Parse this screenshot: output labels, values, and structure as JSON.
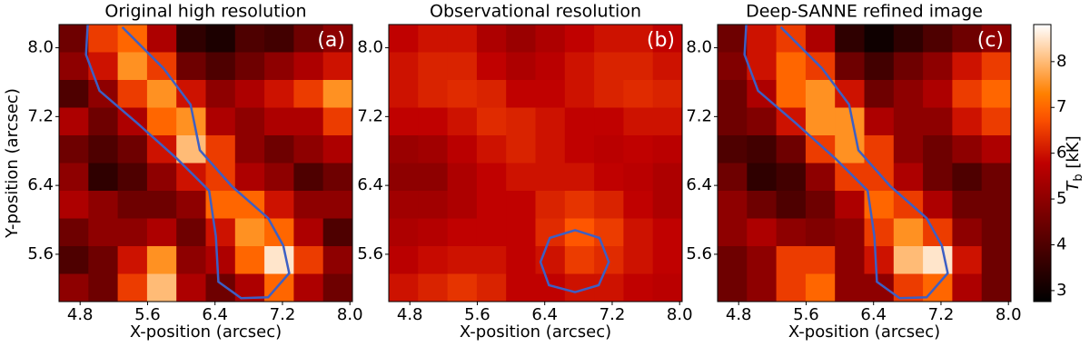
{
  "chart_data": [
    {
      "type": "heatmap",
      "title": "Original high resolution",
      "letter": "(a)",
      "xlabel": "X-position (arcsec)",
      "ylabel": "Y-position (arcsec)",
      "xlim": [
        4.55,
        8.03
      ],
      "ylim": [
        5.05,
        8.27
      ],
      "xticks": [
        4.8,
        5.6,
        6.4,
        7.2,
        {
          "value": 8,
          "label": "8.0"
        }
      ],
      "yticks": [
        5.6,
        6.4,
        7.2,
        {
          "value": 8,
          "label": "8.0"
        }
      ],
      "values": [
        [
          4.5,
          6.5,
          7.0,
          5.5,
          3.5,
          3.2,
          4.0,
          3.8,
          4.5,
          5.0
        ],
        [
          5.0,
          6.0,
          7.5,
          6.5,
          4.5,
          4.0,
          4.5,
          5.0,
          5.5,
          6.0
        ],
        [
          4.0,
          5.0,
          6.5,
          7.5,
          6.0,
          5.0,
          5.5,
          6.0,
          6.5,
          7.5
        ],
        [
          5.5,
          4.5,
          5.5,
          7.0,
          7.5,
          5.5,
          5.0,
          5.5,
          5.5,
          6.5
        ],
        [
          4.5,
          4.0,
          4.5,
          6.0,
          8.0,
          6.5,
          5.0,
          4.5,
          5.0,
          5.5
        ],
        [
          5.0,
          3.5,
          4.0,
          5.0,
          6.0,
          6.5,
          5.5,
          5.0,
          4.0,
          4.5
        ],
        [
          5.5,
          5.0,
          4.5,
          4.5,
          5.0,
          7.0,
          7.0,
          6.0,
          5.0,
          5.0
        ],
        [
          4.5,
          5.0,
          5.0,
          5.5,
          4.5,
          6.0,
          7.5,
          7.0,
          5.5,
          4.0
        ],
        [
          4.0,
          4.5,
          6.0,
          7.5,
          5.0,
          5.5,
          7.0,
          8.5,
          6.5,
          5.0
        ],
        [
          5.0,
          4.5,
          6.5,
          8.0,
          5.5,
          4.5,
          5.5,
          7.0,
          5.5,
          4.5
        ]
      ],
      "contour": {
        "color": "#3d5fc4",
        "x": [
          4.89,
          4.87,
          5.03,
          5.47,
          5.95,
          6.33,
          6.41,
          6.44,
          6.71,
          7.03,
          7.28,
          7.21,
          7.03,
          6.6,
          6.22,
          6.11,
          5.79,
          5.3
        ],
        "y": [
          8.27,
          7.92,
          7.5,
          7.13,
          6.71,
          6.34,
          5.81,
          5.28,
          5.09,
          5.1,
          5.38,
          5.7,
          6.02,
          6.39,
          6.81,
          7.34,
          7.76,
          8.24
        ]
      }
    },
    {
      "type": "heatmap",
      "title": "Observational resolution",
      "letter": "(b)",
      "xlabel": "X-position (arcsec)",
      "xlim": [
        4.55,
        8.03
      ],
      "ylim": [
        5.05,
        8.27
      ],
      "xticks": [
        4.8,
        5.6,
        6.4,
        7.2,
        {
          "value": 8,
          "label": "8.0"
        }
      ],
      "yticks": [
        5.6,
        6.4,
        7.2,
        {
          "value": 8,
          "label": "8.0"
        }
      ],
      "values": [
        [
          5.8,
          6.0,
          6.0,
          5.5,
          5.2,
          5.5,
          5.8,
          6.0,
          6.0,
          5.8
        ],
        [
          6.0,
          6.2,
          6.2,
          5.8,
          5.5,
          5.7,
          6.0,
          6.2,
          6.2,
          6.0
        ],
        [
          6.0,
          6.2,
          6.3,
          6.2,
          5.8,
          5.8,
          6.0,
          6.2,
          6.3,
          6.2
        ],
        [
          5.8,
          5.8,
          6.0,
          6.3,
          6.2,
          6.0,
          5.8,
          5.8,
          6.0,
          6.0
        ],
        [
          5.2,
          5.3,
          5.7,
          6.0,
          6.2,
          6.0,
          5.8,
          5.7,
          5.8,
          5.7
        ],
        [
          5.0,
          5.0,
          5.5,
          5.8,
          6.0,
          6.0,
          6.0,
          5.8,
          5.7,
          5.5
        ],
        [
          5.3,
          5.3,
          5.5,
          5.8,
          5.8,
          6.2,
          6.4,
          6.2,
          5.8,
          5.5
        ],
        [
          5.5,
          5.6,
          5.8,
          5.8,
          5.8,
          6.3,
          6.8,
          6.5,
          6.0,
          5.8
        ],
        [
          5.7,
          5.9,
          6.0,
          6.0,
          5.8,
          6.0,
          6.5,
          6.3,
          6.0,
          5.8
        ],
        [
          6.0,
          6.2,
          6.4,
          6.2,
          5.8,
          5.8,
          6.0,
          6.0,
          5.8,
          5.7
        ]
      ],
      "contour": {
        "color": "#3d5fc4",
        "closed": true,
        "x": [
          6.76,
          7.05,
          7.16,
          7.04,
          6.76,
          6.45,
          6.35,
          6.46
        ],
        "y": [
          5.88,
          5.79,
          5.51,
          5.24,
          5.16,
          5.24,
          5.51,
          5.79
        ]
      }
    },
    {
      "type": "heatmap",
      "title": "Deep-SANNE refined image",
      "letter": "(c)",
      "xlabel": "X-position (arcsec)",
      "xlim": [
        4.55,
        8.03
      ],
      "ylim": [
        5.05,
        8.27
      ],
      "xticks": [
        4.8,
        5.6,
        6.4,
        7.2,
        {
          "value": 8,
          "label": "8.0"
        }
      ],
      "yticks": [
        5.6,
        6.4,
        7.2,
        {
          "value": 8,
          "label": "8.0"
        }
      ],
      "values": [
        [
          4.5,
          6.0,
          6.5,
          5.5,
          3.5,
          3.0,
          3.5,
          4.0,
          4.5,
          5.0
        ],
        [
          4.8,
          6.0,
          7.0,
          6.5,
          4.5,
          3.8,
          4.5,
          5.0,
          6.0,
          6.5
        ],
        [
          4.5,
          5.5,
          7.0,
          7.5,
          6.0,
          4.5,
          5.0,
          5.5,
          6.5,
          7.0
        ],
        [
          4.5,
          4.8,
          6.0,
          7.5,
          7.5,
          5.5,
          5.0,
          5.0,
          6.0,
          6.5
        ],
        [
          4.0,
          3.8,
          4.5,
          6.5,
          7.5,
          6.5,
          5.0,
          4.5,
          5.0,
          5.5
        ],
        [
          4.5,
          3.5,
          3.8,
          5.0,
          6.5,
          6.5,
          5.5,
          4.5,
          4.0,
          4.5
        ],
        [
          5.0,
          4.5,
          4.0,
          4.5,
          5.5,
          7.0,
          6.5,
          5.5,
          4.5,
          4.5
        ],
        [
          5.0,
          5.5,
          5.0,
          4.8,
          5.0,
          6.5,
          7.5,
          6.5,
          5.0,
          4.5
        ],
        [
          4.5,
          5.0,
          6.5,
          6.5,
          5.0,
          6.0,
          8.0,
          8.5,
          6.0,
          4.5
        ],
        [
          4.5,
          5.0,
          6.5,
          7.0,
          5.0,
          5.0,
          6.5,
          7.0,
          5.5,
          4.5
        ]
      ],
      "contour": {
        "color": "#3d5fc4",
        "x": [
          4.89,
          4.87,
          5.03,
          5.47,
          5.95,
          6.33,
          6.41,
          6.44,
          6.71,
          7.03,
          7.28,
          7.21,
          7.03,
          6.6,
          6.22,
          6.11,
          5.79,
          5.3
        ],
        "y": [
          8.27,
          7.92,
          7.5,
          7.13,
          6.71,
          6.34,
          5.81,
          5.28,
          5.09,
          5.1,
          5.38,
          5.7,
          6.02,
          6.39,
          6.81,
          7.34,
          7.76,
          8.24
        ]
      }
    }
  ],
  "colorbar": {
    "colormap": "gist_heat",
    "lim": [
      2.76,
      8.81
    ],
    "ticks": [
      3,
      4,
      5,
      6,
      7,
      8
    ],
    "label": {
      "symbol": "T",
      "subscript": "b",
      "unit": "[kK]"
    }
  }
}
